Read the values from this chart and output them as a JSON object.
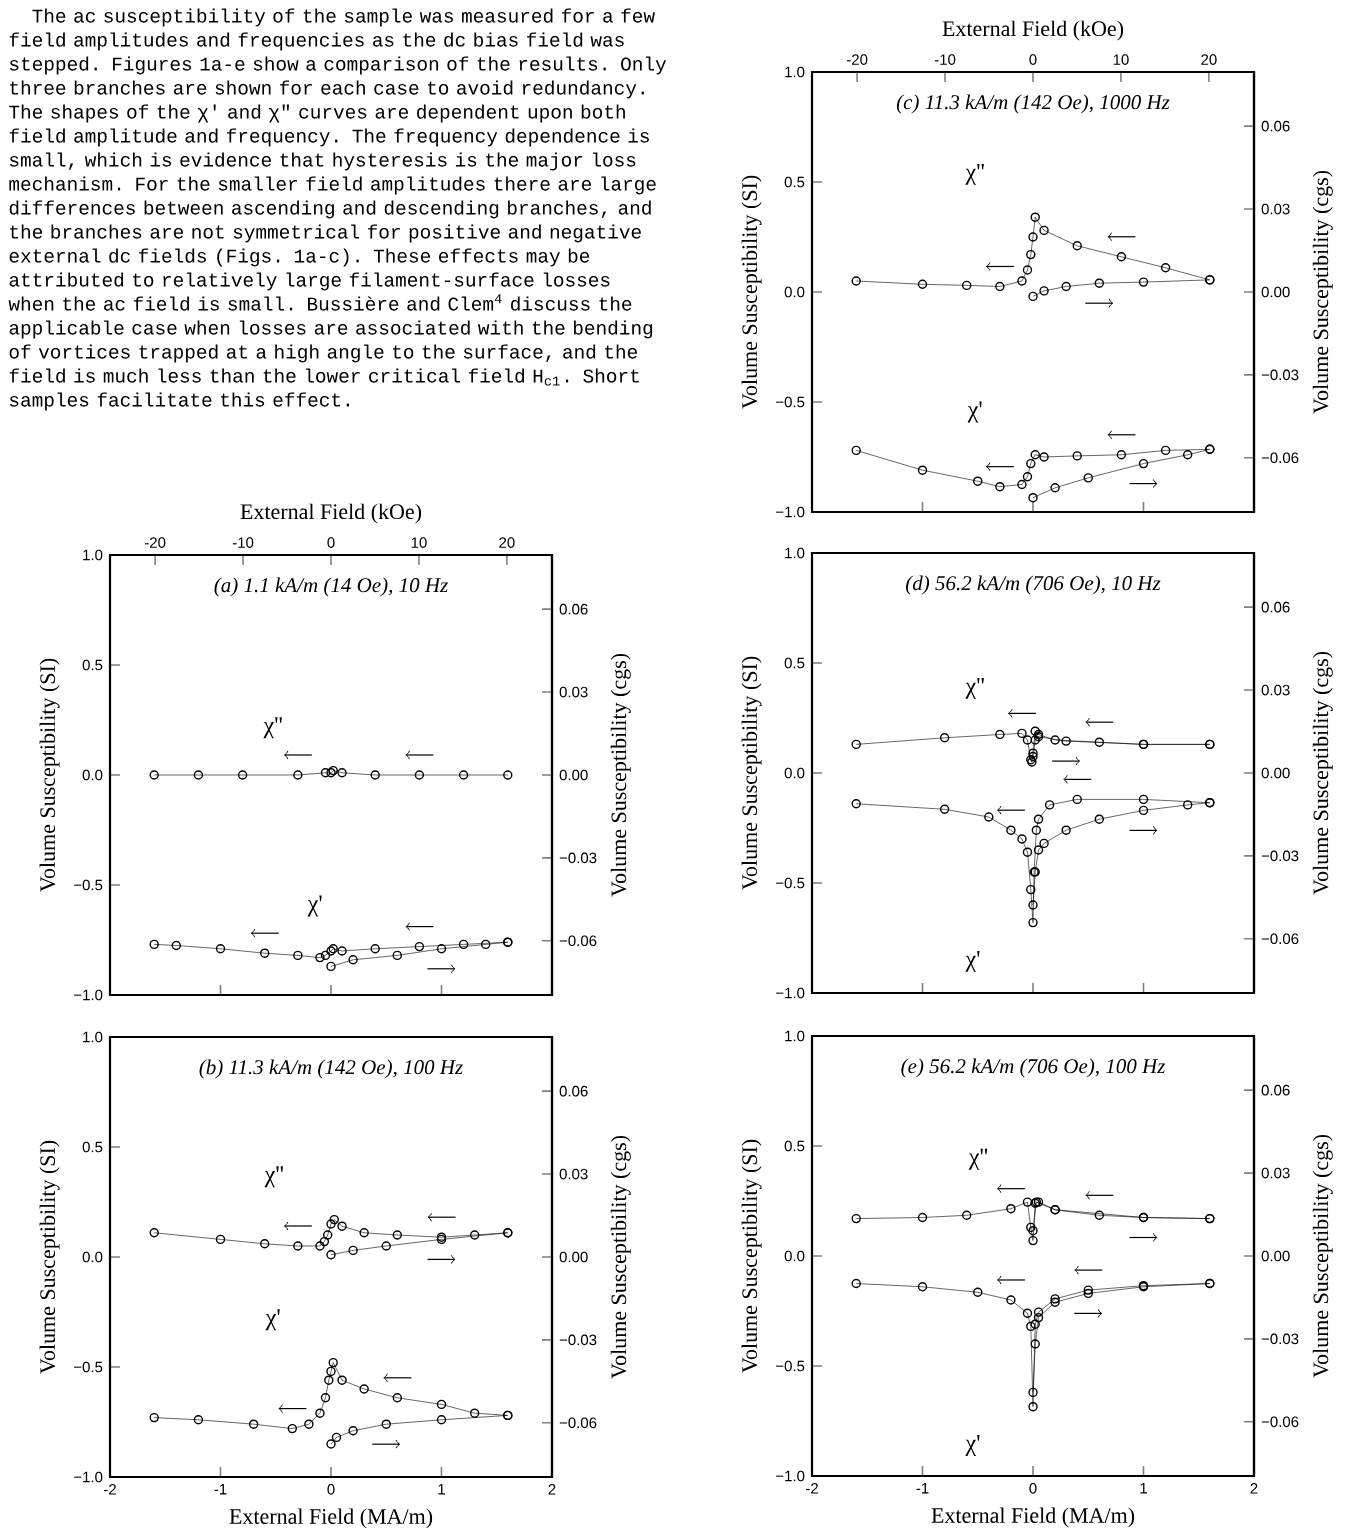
{
  "chart_data": [
    {
      "type": "other",
      "annotations": [
        "The ac susceptibility of the sample was measured for a few field amplitudes and frequencies as the dc bias field was stepped. Figures 1a-e show a comparison of the results. Only three branches are shown for each case to avoid redundancy. The shapes of the χ' and χ\" curves are dependent upon both field amplitude and frequency. The frequency dependence is small, which is evidence that hysteresis is the major loss mechanism. For the smaller field amplitudes there are large differences between ascending and descending branches, and the branches are not symmetrical for positive and negative external dc fields (Figs. 1a-c). These effects may be attributed to relatively large filament-surface losses when the ac field is small. Bussière and Clem$^{4}$ discuss the applicable case when losses are associated with the bending of vortices trapped at a high angle to the surface, and the field is much less than the lower critical field H$_{c1}$. Short samples facilitate this effect."
      ]
    },
    {
      "type": "line",
      "title": "(a) 1.1 kA/m (14 Oe), 10 Hz",
      "x2label": "External Field (kOe)",
      "ylabel": "Volume Susceptibility (SI)",
      "y2label": "Volume Susceptibility (cgs)",
      "marker": "circle",
      "tick_labels": "y",
      "xlim": [
        -2,
        2
      ],
      "xticks": [
        -2,
        -1,
        0,
        1,
        2
      ],
      "x2lim": [
        -25.13,
        25.13
      ],
      "x2ticks": [
        -20,
        -10,
        0,
        10,
        20
      ],
      "ylim": [
        -1,
        1
      ],
      "yticks": [
        {
          "value": -1,
          "label": "−1.0"
        },
        {
          "value": -0.5,
          "label": "−0.5"
        },
        {
          "value": 0,
          "label": "0.0"
        },
        {
          "value": 0.5,
          "label": "0.5"
        },
        {
          "value": 1,
          "label": "1.0"
        }
      ],
      "y2lim": [
        -0.0796,
        0.0796
      ],
      "y2ticks": [
        {
          "value": -0.06,
          "label": "−0.06"
        },
        {
          "value": -0.03,
          "label": "−0.03"
        },
        {
          "value": 0,
          "label": "0.00"
        },
        {
          "value": 0.03,
          "label": "0.03"
        },
        {
          "value": 0.06,
          "label": "0.06"
        }
      ],
      "series": [
        {
          "name": "χ''",
          "color": "#000000",
          "x": [
            1.6,
            1.2,
            0.8,
            0.4,
            0.1,
            0.02,
            0,
            -0.05,
            -0.3,
            -0.8,
            -1.2,
            -1.6
          ],
          "values": [
            0,
            0,
            0,
            0,
            0.01,
            0.02,
            0.01,
            0.01,
            0,
            0,
            0,
            0
          ]
        },
        {
          "name": "χ'",
          "color": "#000000",
          "x": [
            1.6,
            1.2,
            0.8,
            0.4,
            0.1,
            0.02,
            0,
            -0.05,
            -0.1,
            -0.3,
            -0.6,
            -1.0,
            -1.4,
            -1.6
          ],
          "values": [
            -0.76,
            -0.77,
            -0.78,
            -0.79,
            -0.8,
            -0.79,
            -0.8,
            -0.82,
            -0.83,
            -0.82,
            -0.81,
            -0.79,
            -0.775,
            -0.77
          ]
        },
        {
          "color": "#000000",
          "x": [
            0,
            0.2,
            0.6,
            1.0,
            1.4,
            1.6
          ],
          "values": [
            -0.87,
            -0.84,
            -0.82,
            -0.79,
            -0.77,
            -0.76
          ]
        }
      ]
    },
    {
      "type": "line",
      "title": "(b) 11.3 kA/m (142 Oe), 100 Hz",
      "xlabel": "External Field (MA/m)",
      "ylabel": "Volume Susceptibility (SI)",
      "y2label": "Volume Susceptibility (cgs)",
      "marker": "circle",
      "xlim": [
        -2,
        2
      ],
      "xticks": [
        -2,
        -1,
        0,
        1,
        2
      ],
      "ylim": [
        -1,
        1
      ],
      "yticks": [
        {
          "value": -1,
          "label": "−1.0"
        },
        {
          "value": -0.5,
          "label": "−0.5"
        },
        {
          "value": 0,
          "label": "0.0"
        },
        {
          "value": 0.5,
          "label": "0.5"
        },
        {
          "value": 1,
          "label": "1.0"
        }
      ],
      "y2lim": [
        -0.0796,
        0.0796
      ],
      "y2ticks": [
        {
          "value": -0.06,
          "label": "−0.06"
        },
        {
          "value": -0.03,
          "label": "−0.03"
        },
        {
          "value": 0,
          "label": "0.00"
        },
        {
          "value": 0.03,
          "label": "0.03"
        },
        {
          "value": 0.06,
          "label": "0.06"
        }
      ],
      "series": [
        {
          "name": "χ''",
          "color": "#000000",
          "x": [
            1.6,
            1.3,
            1.0,
            0.6,
            0.3,
            0.1,
            0.03,
            0,
            -0.03,
            -0.06,
            -0.1,
            -0.3,
            -0.6,
            -1.0,
            -1.6
          ],
          "values": [
            0.11,
            0.1,
            0.09,
            0.1,
            0.11,
            0.14,
            0.17,
            0.15,
            0.1,
            0.07,
            0.05,
            0.05,
            0.06,
            0.08,
            0.11
          ]
        },
        {
          "color": "#000000",
          "x": [
            0,
            0.2,
            0.5,
            1.0,
            1.6
          ],
          "values": [
            0.01,
            0.03,
            0.05,
            0.08,
            0.11
          ]
        },
        {
          "name": "χ'",
          "color": "#000000",
          "x": [
            1.6,
            1.3,
            1.0,
            0.6,
            0.3,
            0.1,
            0.02,
            0,
            -0.02,
            -0.05,
            -0.1,
            -0.2,
            -0.35,
            -0.7,
            -1.2,
            -1.6
          ],
          "values": [
            -0.72,
            -0.71,
            -0.67,
            -0.64,
            -0.6,
            -0.56,
            -0.48,
            -0.52,
            -0.56,
            -0.64,
            -0.71,
            -0.76,
            -0.78,
            -0.76,
            -0.74,
            -0.73
          ]
        },
        {
          "color": "#000000",
          "x": [
            0,
            0.05,
            0.2,
            0.5,
            1.0,
            1.6
          ],
          "values": [
            -0.85,
            -0.82,
            -0.79,
            -0.76,
            -0.74,
            -0.72
          ]
        }
      ]
    },
    {
      "type": "line",
      "title": "(c) 11.3 kA/m (142 Oe), 1000 Hz",
      "x2label": "External Field (kOe)",
      "ylabel": "Volume Susceptibility (SI)",
      "y2label": "Volume Susceptibility (cgs)",
      "marker": "circle",
      "tick_labels": "y",
      "xlim": [
        -2,
        2
      ],
      "xticks": [
        -2,
        -1,
        0,
        1,
        2
      ],
      "x2lim": [
        -25.13,
        25.13
      ],
      "x2ticks": [
        -20,
        -10,
        0,
        10,
        20
      ],
      "ylim": [
        -1,
        1
      ],
      "yticks": [
        {
          "value": -1,
          "label": "−1.0"
        },
        {
          "value": -0.5,
          "label": "−0.5"
        },
        {
          "value": 0,
          "label": "0.0"
        },
        {
          "value": 0.5,
          "label": "0.5"
        },
        {
          "value": 1,
          "label": "1.0"
        }
      ],
      "y2lim": [
        -0.0796,
        0.0796
      ],
      "y2ticks": [
        {
          "value": -0.06,
          "label": "−0.06"
        },
        {
          "value": -0.03,
          "label": "−0.03"
        },
        {
          "value": 0,
          "label": "0.00"
        },
        {
          "value": 0.03,
          "label": "0.03"
        },
        {
          "value": 0.06,
          "label": "0.06"
        }
      ],
      "series": [
        {
          "name": "χ''",
          "color": "#000000",
          "x": [
            1.6,
            1.2,
            0.8,
            0.4,
            0.1,
            0.02,
            0,
            -0.02,
            -0.05,
            -0.1,
            -0.3,
            -0.6,
            -1.0,
            -1.6
          ],
          "values": [
            0.055,
            0.11,
            0.16,
            0.21,
            0.28,
            0.34,
            0.25,
            0.17,
            0.1,
            0.05,
            0.025,
            0.03,
            0.035,
            0.05
          ]
        },
        {
          "color": "#000000",
          "x": [
            0,
            0.1,
            0.3,
            0.6,
            1.0,
            1.6
          ],
          "values": [
            -0.02,
            0.005,
            0.025,
            0.04,
            0.045,
            0.055
          ]
        },
        {
          "name": "χ'",
          "color": "#000000",
          "x": [
            1.6,
            1.2,
            0.8,
            0.4,
            0.1,
            0.02,
            -0.02,
            -0.05,
            -0.1,
            -0.3,
            -0.5,
            -1.0,
            -1.6
          ],
          "values": [
            -0.715,
            -0.72,
            -0.74,
            -0.745,
            -0.75,
            -0.74,
            -0.78,
            -0.84,
            -0.875,
            -0.885,
            -0.86,
            -0.81,
            -0.72
          ]
        },
        {
          "color": "#000000",
          "x": [
            0,
            0.2,
            0.5,
            1.0,
            1.4,
            1.6
          ],
          "values": [
            -0.935,
            -0.89,
            -0.845,
            -0.78,
            -0.74,
            -0.715
          ]
        }
      ]
    },
    {
      "type": "line",
      "title": "(d) 56.2 kA/m (706 Oe), 10 Hz",
      "ylabel": "Volume Susceptibility (SI)",
      "y2label": "Volume Susceptibility (cgs)",
      "marker": "circle",
      "tick_labels": "y",
      "xlim": [
        -2,
        2
      ],
      "xticks": [
        -2,
        -1,
        0,
        1,
        2
      ],
      "ylim": [
        -1,
        1
      ],
      "yticks": [
        {
          "value": -1,
          "label": "−1.0"
        },
        {
          "value": -0.5,
          "label": "−0.5"
        },
        {
          "value": 0,
          "label": "0.0"
        },
        {
          "value": 0.5,
          "label": "0.5"
        },
        {
          "value": 1,
          "label": "1.0"
        }
      ],
      "y2lim": [
        -0.0796,
        0.0796
      ],
      "y2ticks": [
        {
          "value": -0.06,
          "label": "−0.06"
        },
        {
          "value": -0.03,
          "label": "−0.03"
        },
        {
          "value": 0,
          "label": "0.00"
        },
        {
          "value": 0.03,
          "label": "0.03"
        },
        {
          "value": 0.06,
          "label": "0.06"
        }
      ],
      "series": [
        {
          "name": "χ''",
          "color": "#000000",
          "x": [
            1.6,
            1.0,
            0.6,
            0.2,
            0.05,
            0.02,
            0,
            -0.01,
            -0.02,
            -0.05,
            -0.1,
            -0.3,
            -0.8,
            -1.6
          ],
          "values": [
            0.13,
            0.13,
            0.14,
            0.15,
            0.175,
            0.19,
            0.09,
            0.05,
            0.06,
            0.15,
            0.18,
            0.175,
            0.16,
            0.13
          ]
        },
        {
          "color": "#000000",
          "x": [
            0,
            0.02,
            0.05,
            0.3,
            1.0,
            1.6
          ],
          "values": [
            0.075,
            0.15,
            0.165,
            0.145,
            0.13,
            0.13
          ]
        },
        {
          "name": "χ'",
          "color": "#000000",
          "x": [
            1.6,
            1.0,
            0.4,
            0.15,
            0.05,
            0.03,
            0.01,
            0,
            -0.02,
            -0.05,
            -0.1,
            -0.2,
            -0.4,
            -0.8,
            -1.6
          ],
          "values": [
            -0.135,
            -0.12,
            -0.12,
            -0.145,
            -0.21,
            -0.26,
            -0.45,
            -0.68,
            -0.53,
            -0.36,
            -0.3,
            -0.26,
            -0.2,
            -0.165,
            -0.14
          ]
        },
        {
          "color": "#000000",
          "x": [
            0,
            0.02,
            0.05,
            0.1,
            0.3,
            0.6,
            1.0,
            1.4,
            1.6
          ],
          "values": [
            -0.6,
            -0.45,
            -0.35,
            -0.32,
            -0.26,
            -0.21,
            -0.17,
            -0.145,
            -0.135
          ]
        }
      ]
    },
    {
      "type": "line",
      "title": "(e) 56.2 kA/m (706 Oe), 100 Hz",
      "xlabel": "External Field (MA/m)",
      "ylabel": "Volume Susceptibility (SI)",
      "y2label": "Volume Susceptibility (cgs)",
      "marker": "circle",
      "xlim": [
        -2,
        2
      ],
      "xticks": [
        -2,
        -1,
        0,
        1,
        2
      ],
      "ylim": [
        -1,
        1
      ],
      "yticks": [
        {
          "value": -1,
          "label": "−1.0"
        },
        {
          "value": -0.5,
          "label": "−0.5"
        },
        {
          "value": 0,
          "label": "0.0"
        },
        {
          "value": 0.5,
          "label": "0.5"
        },
        {
          "value": 1,
          "label": "1.0"
        }
      ],
      "y2lim": [
        -0.0796,
        0.0796
      ],
      "y2ticks": [
        {
          "value": -0.06,
          "label": "−0.06"
        },
        {
          "value": -0.03,
          "label": "−0.03"
        },
        {
          "value": 0,
          "label": "0.00"
        },
        {
          "value": 0.03,
          "label": "0.03"
        },
        {
          "value": 0.06,
          "label": "0.06"
        }
      ],
      "series": [
        {
          "name": "χ''",
          "color": "#000000",
          "x": [
            1.6,
            1.0,
            0.6,
            0.2,
            0.05,
            0.02,
            0,
            -0.02,
            -0.05,
            -0.2,
            -0.6,
            -1.0,
            -1.6
          ],
          "values": [
            0.17,
            0.175,
            0.185,
            0.21,
            0.245,
            0.24,
            0.07,
            0.13,
            0.245,
            0.215,
            0.185,
            0.175,
            0.17
          ]
        },
        {
          "color": "#000000",
          "x": [
            0,
            0.03,
            0.2,
            1.0,
            1.6
          ],
          "values": [
            0.115,
            0.245,
            0.21,
            0.175,
            0.17
          ]
        },
        {
          "name": "χ'",
          "color": "#000000",
          "x": [
            1.6,
            1.0,
            0.5,
            0.2,
            0.05,
            0.02,
            0,
            -0.02,
            -0.05,
            -0.2,
            -0.5,
            -1.0,
            -1.6
          ],
          "values": [
            -0.125,
            -0.135,
            -0.155,
            -0.195,
            -0.255,
            -0.31,
            -0.685,
            -0.32,
            -0.26,
            -0.2,
            -0.165,
            -0.14,
            -0.125
          ]
        },
        {
          "color": "#000000",
          "x": [
            0,
            0.02,
            0.05,
            0.2,
            0.5,
            1.0,
            1.6
          ],
          "values": [
            -0.62,
            -0.4,
            -0.28,
            -0.21,
            -0.17,
            -0.14,
            -0.125
          ]
        }
      ]
    }
  ]
}
